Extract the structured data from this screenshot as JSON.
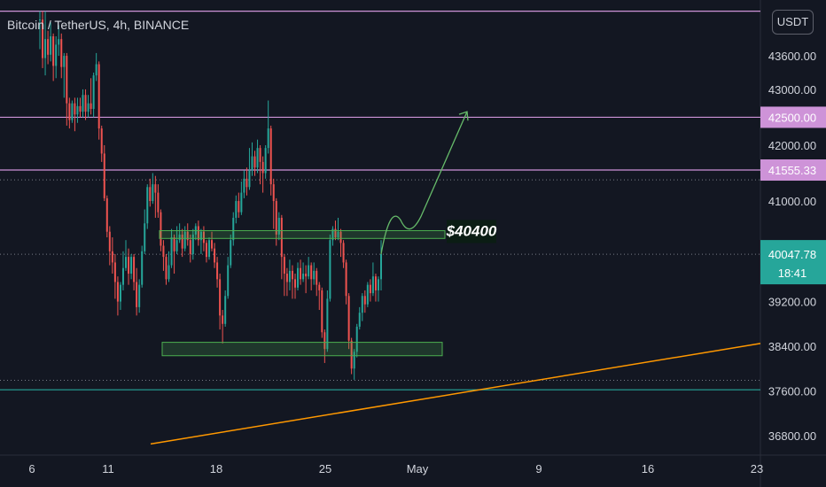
{
  "header": {
    "symbol": "Bitcoin / TetherUS, 4h, BINANCE",
    "unit": "USDT"
  },
  "colors": {
    "background": "#131722",
    "up": "#26a69a",
    "down": "#ef5350",
    "level": "#ce93d8",
    "zone": "#4caf50",
    "trend": "#ff9800",
    "support": "#26a69a",
    "grid": "#2a2e39",
    "text": "#d1d4dc"
  },
  "chart_data": {
    "type": "candlestick",
    "x_axis": {
      "ticks": [
        "6",
        "11",
        "18",
        "25",
        "May",
        "9",
        "16",
        "23"
      ]
    },
    "y_axis": {
      "range": [
        36450,
        44600
      ],
      "ticks": [
        "43000.00",
        "42000.00",
        "41000.00",
        "39200.00",
        "38400.00",
        "37600.00",
        "36800.00"
      ],
      "top_tick_partial": "43600.00"
    },
    "price_labels": [
      {
        "value": "42500.00",
        "style": "level"
      },
      {
        "value": "41555.33",
        "style": "level"
      },
      {
        "value": "40047.78",
        "sub": "18:41",
        "style": "current"
      }
    ],
    "horizontal_levels": [
      {
        "price": 44400,
        "kind": "resistance"
      },
      {
        "price": 42500,
        "kind": "resistance"
      },
      {
        "price": 41555.33,
        "kind": "resistance"
      }
    ],
    "dotted_levels": [
      41380,
      40047.78,
      37790
    ],
    "support_level": 37620,
    "zones": [
      {
        "label": "$40400",
        "top": 40470,
        "bottom": 40330
      },
      {
        "top": 38470,
        "bottom": 38230
      }
    ],
    "trendline": {
      "from_price": 36650,
      "to_price": 38450
    },
    "projection": {
      "target_price": 42600
    },
    "candles": [
      [
        44250,
        44250,
        44400,
        43720
      ],
      [
        44250,
        43560,
        44400,
        43380
      ],
      [
        43560,
        43900,
        44400,
        43250
      ],
      [
        43900,
        43620,
        44050,
        43450
      ],
      [
        43620,
        43950,
        44200,
        43500
      ],
      [
        43950,
        43420,
        44000,
        43150
      ],
      [
        43420,
        43800,
        43950,
        43200
      ],
      [
        43800,
        43900,
        44150,
        43600
      ],
      [
        43900,
        43400,
        44000,
        43200
      ],
      [
        43400,
        43600,
        43650,
        42850
      ],
      [
        43600,
        42750,
        43650,
        42350
      ],
      [
        42750,
        42450,
        42850,
        42300
      ],
      [
        42450,
        42750,
        42800,
        42400
      ],
      [
        42750,
        42550,
        42850,
        42250
      ],
      [
        42550,
        42700,
        42850,
        42400
      ],
      [
        42700,
        42600,
        42850,
        42500
      ],
      [
        42600,
        42900,
        43000,
        42500
      ],
      [
        42900,
        42600,
        43000,
        42450
      ],
      [
        42600,
        42750,
        42900,
        42500
      ],
      [
        42750,
        42650,
        43200,
        42550
      ],
      [
        42650,
        43250,
        43300,
        42500
      ],
      [
        43250,
        43450,
        43650,
        43150
      ],
      [
        43450,
        42300,
        43500,
        42100
      ],
      [
        42300,
        41850,
        42350,
        41700
      ],
      [
        41850,
        41050,
        42000,
        41000
      ],
      [
        41050,
        40450,
        41100,
        40350
      ],
      [
        40450,
        40100,
        40550,
        39850
      ],
      [
        40100,
        39900,
        40350,
        39700
      ],
      [
        39900,
        39550,
        40050,
        39250
      ],
      [
        39550,
        39200,
        39650,
        38950
      ],
      [
        39200,
        39500,
        39550,
        39050
      ],
      [
        39500,
        39800,
        40100,
        39400
      ],
      [
        39800,
        40000,
        40300,
        39750
      ],
      [
        40000,
        39700,
        40150,
        39500
      ],
      [
        39700,
        40000,
        40050,
        39600
      ],
      [
        40000,
        39550,
        40050,
        39400
      ],
      [
        39550,
        39100,
        39800,
        38950
      ],
      [
        39100,
        39500,
        39600,
        39000
      ],
      [
        39500,
        40100,
        40200,
        39450
      ],
      [
        40100,
        40600,
        40850,
        40050
      ],
      [
        40600,
        41250,
        41300,
        40500
      ],
      [
        41250,
        41000,
        41400,
        40900
      ],
      [
        41000,
        41300,
        41500,
        40950
      ],
      [
        41300,
        41150,
        41450,
        40700
      ],
      [
        41150,
        40800,
        41300,
        40700
      ],
      [
        40800,
        40200,
        40850,
        40100
      ],
      [
        40200,
        40000,
        40300,
        39750
      ],
      [
        40000,
        39600,
        40050,
        39500
      ],
      [
        39600,
        39850,
        40100,
        39550
      ],
      [
        39850,
        40350,
        40500,
        39800
      ],
      [
        40350,
        40100,
        40400,
        39700
      ],
      [
        40100,
        40300,
        40550,
        40050
      ],
      [
        40300,
        40400,
        40600,
        40250
      ],
      [
        40400,
        40150,
        40500,
        40000
      ],
      [
        40150,
        40450,
        40550,
        40100
      ],
      [
        40450,
        40300,
        40600,
        40200
      ],
      [
        40300,
        40050,
        40400,
        39900
      ],
      [
        40050,
        40400,
        40500,
        39950
      ],
      [
        40400,
        40550,
        40600,
        40300
      ],
      [
        40550,
        40300,
        40650,
        40200
      ],
      [
        40300,
        40450,
        40500,
        40050
      ],
      [
        40450,
        40250,
        40550,
        40100
      ],
      [
        40250,
        40000,
        40300,
        39900
      ],
      [
        40000,
        40300,
        40350,
        39950
      ],
      [
        40300,
        40150,
        40450,
        40100
      ],
      [
        40150,
        39900,
        40250,
        39800
      ],
      [
        39900,
        39600,
        40000,
        39450
      ],
      [
        39600,
        38950,
        39700,
        38700
      ],
      [
        38950,
        38800,
        39050,
        38450
      ],
      [
        38800,
        39300,
        39400,
        38750
      ],
      [
        39300,
        39850,
        40000,
        39250
      ],
      [
        39850,
        40300,
        40400,
        39800
      ],
      [
        40300,
        40700,
        40800,
        40200
      ],
      [
        40700,
        41000,
        41100,
        40600
      ],
      [
        41000,
        40800,
        41150,
        40700
      ],
      [
        40800,
        41150,
        41350,
        40750
      ],
      [
        41150,
        41400,
        41550,
        41050
      ],
      [
        41400,
        41250,
        41600,
        41100
      ],
      [
        41250,
        41550,
        41950,
        41200
      ],
      [
        41550,
        41800,
        42050,
        41450
      ],
      [
        41800,
        41600,
        41900,
        41450
      ],
      [
        41600,
        41950,
        42100,
        41500
      ],
      [
        41950,
        41700,
        42000,
        41300
      ],
      [
        41700,
        41500,
        41800,
        41150
      ],
      [
        41500,
        41950,
        42000,
        41400
      ],
      [
        41950,
        42300,
        42800,
        41850
      ],
      [
        42300,
        41300,
        42350,
        41100
      ],
      [
        41300,
        41000,
        41400,
        40500
      ],
      [
        41000,
        40400,
        41050,
        40200
      ],
      [
        40400,
        40700,
        40800,
        40300
      ],
      [
        40700,
        40000,
        40750,
        39600
      ],
      [
        40000,
        39700,
        40050,
        39300
      ],
      [
        39700,
        39550,
        39800,
        39300
      ],
      [
        39550,
        39750,
        39950,
        39400
      ],
      [
        39750,
        39600,
        39850,
        39250
      ],
      [
        39600,
        39450,
        39700,
        39250
      ],
      [
        39450,
        39800,
        39900,
        39400
      ],
      [
        39800,
        39600,
        39950,
        39500
      ],
      [
        39600,
        39700,
        39900,
        39550
      ],
      [
        39700,
        39650,
        39850,
        39350
      ],
      [
        39650,
        39850,
        40000,
        39600
      ],
      [
        39850,
        39600,
        39900,
        39400
      ],
      [
        39600,
        39750,
        39900,
        39500
      ],
      [
        39750,
        39500,
        39800,
        39300
      ],
      [
        39500,
        39400,
        39550,
        39050
      ],
      [
        39400,
        38650,
        39450,
        38550
      ],
      [
        38650,
        38350,
        38700,
        38100
      ],
      [
        38350,
        39250,
        39400,
        38300
      ],
      [
        39250,
        40300,
        40400,
        39200
      ],
      [
        40300,
        40500,
        40550,
        40200
      ],
      [
        40500,
        40350,
        40650,
        40300
      ],
      [
        40350,
        40450,
        40700,
        40300
      ],
      [
        40450,
        40250,
        40500,
        40000
      ],
      [
        40250,
        39900,
        40300,
        39800
      ],
      [
        39900,
        39300,
        39950,
        39150
      ],
      [
        39300,
        38500,
        39350,
        38350
      ],
      [
        38500,
        38000,
        38550,
        37900
      ],
      [
        38000,
        38300,
        38350,
        37800
      ],
      [
        38300,
        38750,
        38800,
        38200
      ],
      [
        38750,
        39000,
        39100,
        38700
      ],
      [
        39000,
        39300,
        39350,
        38850
      ],
      [
        39300,
        39150,
        39400,
        39000
      ],
      [
        39150,
        39500,
        39550,
        39100
      ],
      [
        39500,
        39350,
        39600,
        39200
      ],
      [
        39350,
        39650,
        39900,
        39300
      ],
      [
        39650,
        39400,
        39700,
        39200
      ],
      [
        39400,
        39600,
        39650,
        39200
      ],
      [
        39600,
        40047.78,
        40300,
        39400
      ]
    ]
  }
}
